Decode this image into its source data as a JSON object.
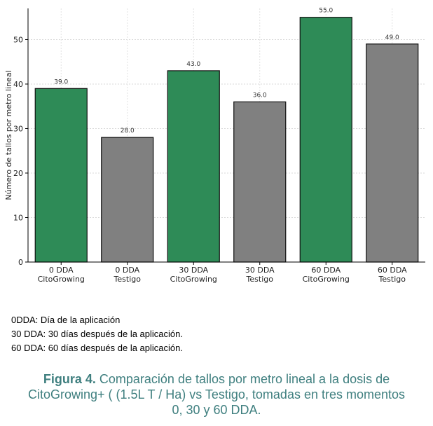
{
  "chart_data": {
    "type": "bar",
    "categories": [
      [
        "0 DDA",
        "CitoGrowing"
      ],
      [
        "0 DDA",
        "Testigo"
      ],
      [
        "30 DDA",
        "CitoGrowing"
      ],
      [
        "30 DDA",
        "Testigo"
      ],
      [
        "60 DDA",
        "CitoGrowing"
      ],
      [
        "60 DDA",
        "Testigo"
      ]
    ],
    "values": [
      39.0,
      28.0,
      43.0,
      36.0,
      55.0,
      49.0
    ],
    "value_labels": [
      "39.0",
      "28.0",
      "43.0",
      "36.0",
      "55.0",
      "49.0"
    ],
    "bar_colors": [
      "#2e8b57",
      "#808080",
      "#2e8b57",
      "#808080",
      "#2e8b57",
      "#808080"
    ],
    "ylabel": "Número de tallos por metro lineal",
    "xlabel": "",
    "ylim": [
      0,
      57
    ],
    "yticks": [
      0,
      10,
      20,
      30,
      40,
      50
    ],
    "grid": true
  },
  "notes": [
    "0DDA: Día de la aplicación",
    "30 DDA: 30 días después  de la aplicación.",
    "60 DDA: 60 días después de la aplicación."
  ],
  "caption": {
    "figure_label": "Figura 4.",
    "line1": "  Comparación de tallos por metro lineal a la dosis de",
    "line2": "CitoGrowing+ ( (1.5L T / Ha)  vs Testigo, tomadas  en tres momentos",
    "line3": "0, 30 y 60 DDA."
  }
}
